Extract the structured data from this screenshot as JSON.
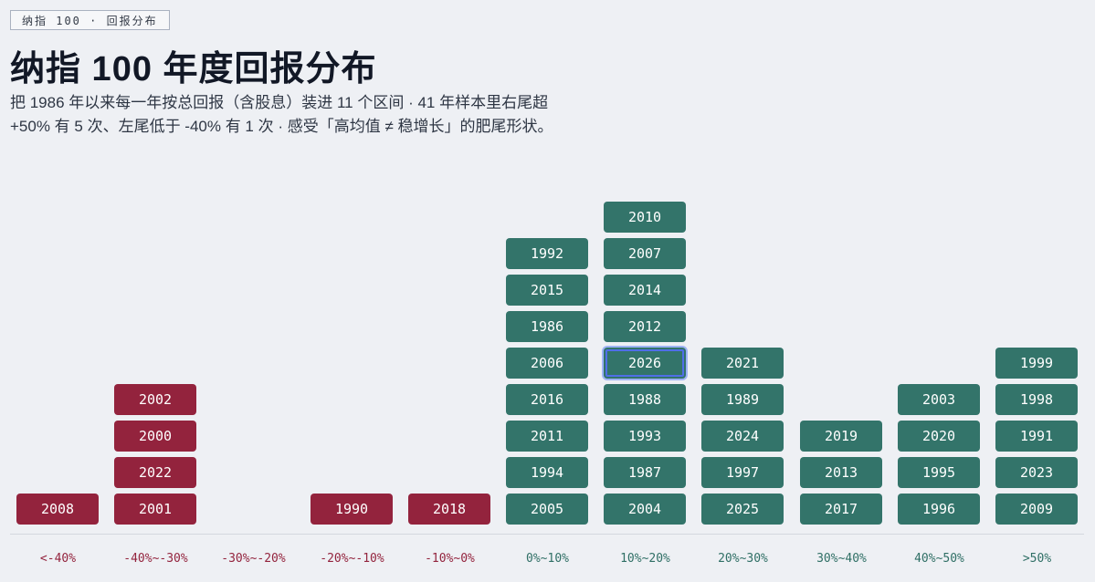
{
  "header": {
    "tag": "纳指 100 · 回报分布",
    "title": "纳指 100 年度回报分布",
    "subtitle": "把 1986 年以来每一年按总回报（含股息）装进 11 个区间 · 41 年样本里右尾超 +50% 有 5 次、左尾低于 -40% 有 1 次 · 感受「高均值 ≠ 稳增长」的肥尾形状。"
  },
  "colors": {
    "negative": "#93233d",
    "positive": "#33746a",
    "highlight": "#4f6ee8"
  },
  "chart_data": {
    "type": "histogram",
    "highlight_year": "2026",
    "bins": [
      {
        "label": "<-40%",
        "sign": "negative",
        "years": [
          "2008"
        ]
      },
      {
        "label": "-40%~-30%",
        "sign": "negative",
        "years": [
          "2001",
          "2022",
          "2000",
          "2002"
        ]
      },
      {
        "label": "-30%~-20%",
        "sign": "negative",
        "years": []
      },
      {
        "label": "-20%~-10%",
        "sign": "negative",
        "years": [
          "1990"
        ]
      },
      {
        "label": "-10%~0%",
        "sign": "negative",
        "years": [
          "2018"
        ]
      },
      {
        "label": "0%~10%",
        "sign": "positive",
        "years": [
          "2005",
          "1994",
          "2011",
          "2016",
          "2006",
          "1986",
          "2015",
          "1992"
        ]
      },
      {
        "label": "10%~20%",
        "sign": "positive",
        "years": [
          "2004",
          "1987",
          "1993",
          "1988",
          "2026",
          "2012",
          "2014",
          "2007",
          "2010"
        ]
      },
      {
        "label": "20%~30%",
        "sign": "positive",
        "years": [
          "2025",
          "1997",
          "2024",
          "1989",
          "2021"
        ]
      },
      {
        "label": "30%~40%",
        "sign": "positive",
        "years": [
          "2017",
          "2013",
          "2019"
        ]
      },
      {
        "label": "40%~50%",
        "sign": "positive",
        "years": [
          "1996",
          "1995",
          "2020",
          "2003"
        ]
      },
      {
        "label": ">50%",
        "sign": "positive",
        "years": [
          "2009",
          "2023",
          "1991",
          "1998",
          "1999"
        ]
      }
    ]
  }
}
